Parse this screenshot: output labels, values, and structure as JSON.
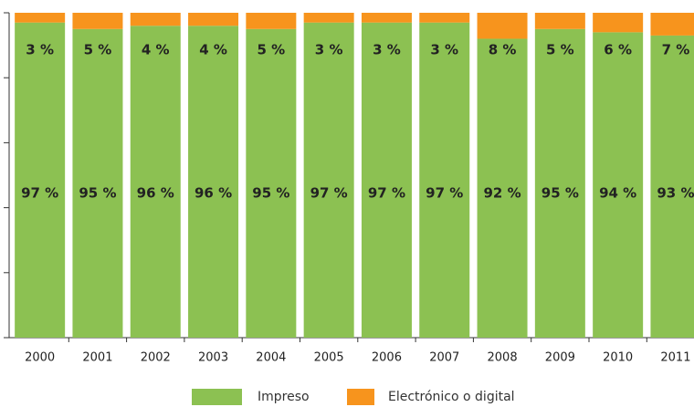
{
  "chart_data": {
    "type": "stacked_bar",
    "categories": [
      "2000",
      "2001",
      "2002",
      "2003",
      "2004",
      "2005",
      "2006",
      "2007",
      "2008",
      "2009",
      "2010",
      "2011"
    ],
    "series": [
      {
        "name": "Impreso",
        "color": "#8cc152",
        "values": [
          97,
          95,
          96,
          96,
          95,
          97,
          97,
          97,
          92,
          95,
          94,
          93
        ],
        "value_labels": [
          "97 %",
          "95 %",
          "96 %",
          "96 %",
          "95 %",
          "97 %",
          "97 %",
          "97 %",
          "92 %",
          "95 %",
          "94 %",
          "93 %"
        ]
      },
      {
        "name": "Electrónico o digital",
        "color": "#f7941d",
        "values": [
          3,
          5,
          4,
          4,
          5,
          3,
          3,
          3,
          8,
          5,
          6,
          7
        ],
        "value_labels": [
          "3 %",
          "5 %",
          "4 %",
          "4 %",
          "5 %",
          "3 %",
          "3 %",
          "3 %",
          "8 %",
          "5 %",
          "6 %",
          "7 %"
        ]
      }
    ],
    "ylim": [
      0,
      100
    ],
    "yticks": [
      0,
      20,
      40,
      60,
      80,
      100
    ]
  }
}
